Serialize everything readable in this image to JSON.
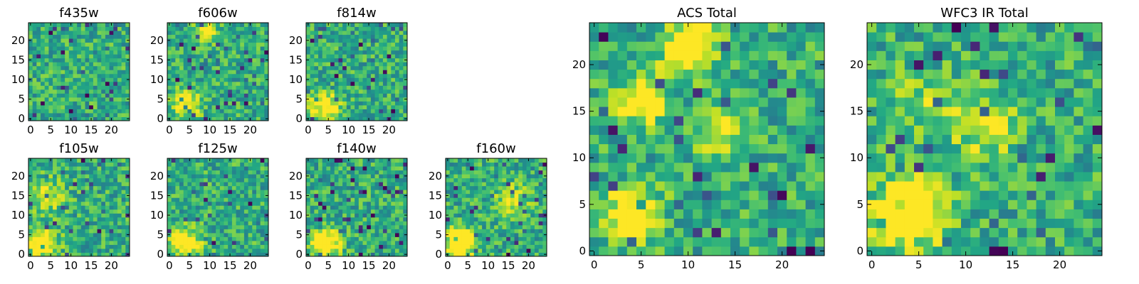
{
  "figure": {
    "colormap": "viridis",
    "background": "#ffffff"
  },
  "chart_data": [
    {
      "type": "heatmap",
      "title": "f435w",
      "grid_size": 25,
      "xticks": [
        "0",
        "5",
        "10",
        "15",
        "20"
      ],
      "yticks": [
        "0",
        "5",
        "10",
        "15",
        "20"
      ],
      "seed": 11,
      "bright_spots": []
    },
    {
      "type": "heatmap",
      "title": "f606w",
      "grid_size": 25,
      "xticks": [
        "0",
        "5",
        "10",
        "15",
        "20"
      ],
      "yticks": [
        "0",
        "5",
        "10",
        "15",
        "20"
      ],
      "seed": 23,
      "bright_spots": [
        [
          4,
          4,
          2.5,
          0.5
        ],
        [
          9,
          22,
          2,
          0.4
        ]
      ]
    },
    {
      "type": "heatmap",
      "title": "f814w",
      "grid_size": 25,
      "xticks": [
        "0",
        "5",
        "10",
        "15",
        "20"
      ],
      "yticks": [
        "0",
        "5",
        "10",
        "15",
        "20"
      ],
      "seed": 37,
      "bright_spots": [
        [
          4,
          3,
          2.5,
          0.6
        ]
      ]
    },
    {
      "type": "heatmap",
      "title": "f105w",
      "grid_size": 25,
      "xticks": [
        "0",
        "5",
        "10",
        "15",
        "20"
      ],
      "yticks": [
        "0",
        "5",
        "10",
        "15",
        "20"
      ],
      "seed": 41,
      "bright_spots": [
        [
          3,
          3,
          2.5,
          0.6
        ],
        [
          4,
          15,
          3,
          0.3
        ]
      ]
    },
    {
      "type": "heatmap",
      "title": "f125w",
      "grid_size": 25,
      "xticks": [
        "0",
        "5",
        "10",
        "15",
        "20"
      ],
      "yticks": [
        "0",
        "5",
        "10",
        "15",
        "20"
      ],
      "seed": 53,
      "bright_spots": [
        [
          4,
          3,
          2.5,
          0.6
        ]
      ]
    },
    {
      "type": "heatmap",
      "title": "f140w",
      "grid_size": 25,
      "xticks": [
        "0",
        "5",
        "10",
        "15",
        "20"
      ],
      "yticks": [
        "0",
        "5",
        "10",
        "15",
        "20"
      ],
      "seed": 67,
      "bright_spots": [
        [
          4,
          3,
          2.5,
          0.7
        ]
      ]
    },
    {
      "type": "heatmap",
      "title": "f160w",
      "grid_size": 25,
      "xticks": [
        "0",
        "5",
        "10",
        "15",
        "20"
      ],
      "yticks": [
        "0",
        "5",
        "10",
        "15",
        "20"
      ],
      "seed": 71,
      "bright_spots": [
        [
          3,
          3,
          2.5,
          0.7
        ],
        [
          16,
          14,
          3,
          0.3
        ]
      ]
    },
    {
      "type": "heatmap",
      "title": "ACS Total",
      "grid_size": 25,
      "xticks": [
        "0",
        "5",
        "10",
        "15",
        "20"
      ],
      "yticks": [
        "0",
        "5",
        "10",
        "15",
        "20"
      ],
      "seed": 83,
      "bright_spots": [
        [
          4,
          4,
          2,
          0.6
        ],
        [
          10,
          22,
          2,
          0.6
        ],
        [
          5,
          16,
          1.8,
          0.5
        ],
        [
          13,
          13,
          1.5,
          0.4
        ]
      ]
    },
    {
      "type": "heatmap",
      "title": "WFC3 IR Total",
      "grid_size": 25,
      "xticks": [
        "0",
        "5",
        "10",
        "15",
        "20"
      ],
      "yticks": [
        "0",
        "5",
        "10",
        "15",
        "20"
      ],
      "seed": 97,
      "bright_spots": [
        [
          4,
          4,
          2.5,
          0.75
        ],
        [
          12,
          13,
          2.5,
          0.3
        ],
        [
          5,
          16,
          2.5,
          0.2
        ]
      ]
    }
  ]
}
